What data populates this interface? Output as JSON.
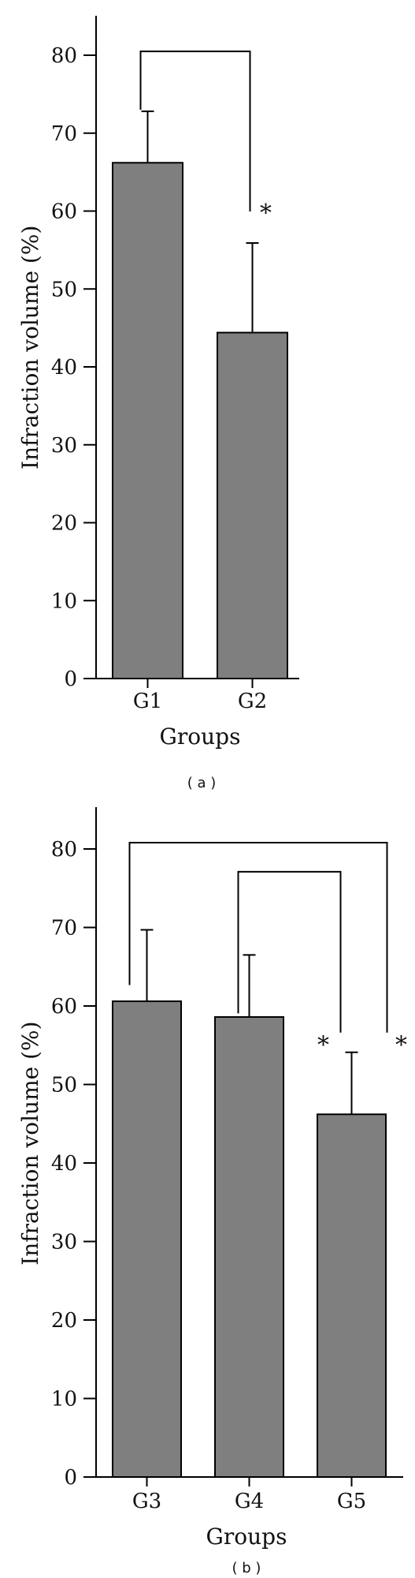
{
  "chart_data": [
    {
      "type": "bar",
      "panel_label": "( a )",
      "xlabel": "Groups",
      "ylabel": "Infraction volume (%)",
      "ylim": [
        0,
        85
      ],
      "yticks": [
        0,
        10,
        20,
        30,
        40,
        50,
        60,
        70,
        80
      ],
      "categories": [
        "G1",
        "G2"
      ],
      "values": [
        66.2,
        44.4
      ],
      "errors": [
        6.6,
        11.5
      ],
      "bar_color": "#7f7f7f",
      "significance": [
        {
          "from": 0,
          "to": 1,
          "level": 80.5,
          "mark": "*"
        }
      ]
    },
    {
      "type": "bar",
      "panel_label": "( b )",
      "xlabel": "Groups",
      "ylabel": "Infraction volume (%)",
      "ylim": [
        0,
        85
      ],
      "yticks": [
        0,
        10,
        20,
        30,
        40,
        50,
        60,
        70,
        80
      ],
      "categories": [
        "G3",
        "G4",
        "G5"
      ],
      "values": [
        60.6,
        58.6,
        46.2
      ],
      "errors": [
        9.1,
        7.9,
        7.9
      ],
      "bar_color": "#7f7f7f",
      "significance": [
        {
          "from": 0,
          "to": 2,
          "level": 80.8,
          "mark": "*"
        },
        {
          "from": 1,
          "to": 2,
          "level": 77.1,
          "mark": "*"
        }
      ]
    }
  ]
}
